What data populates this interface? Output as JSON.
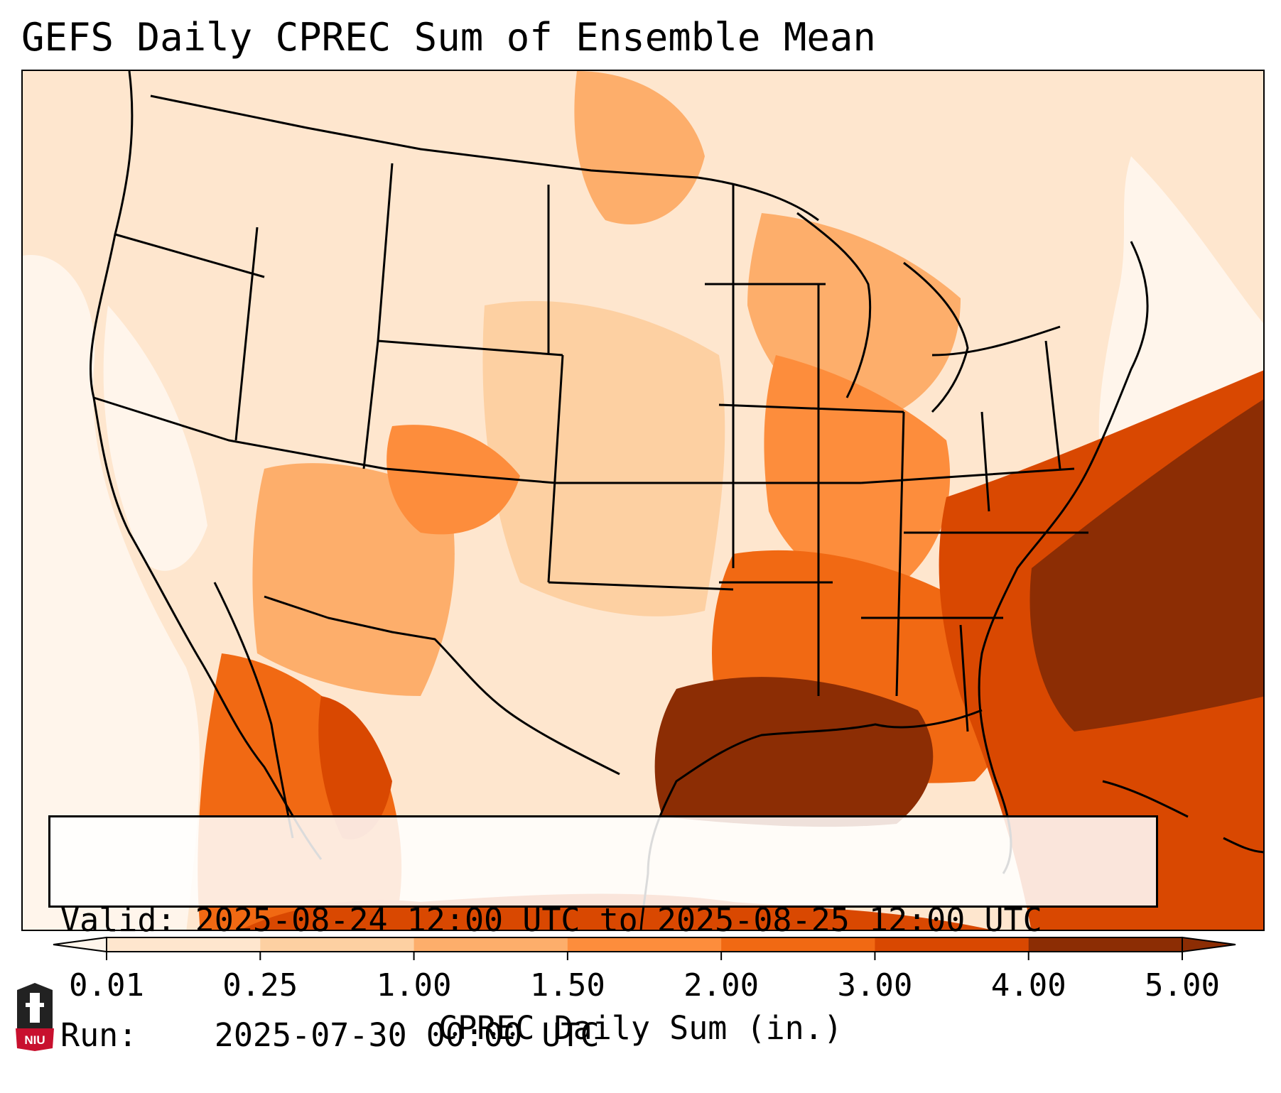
{
  "title": "GEFS Daily CPREC Sum of Ensemble Mean",
  "info": {
    "valid_label": "Valid:",
    "valid_value": "2025-08-24 12:00 UTC to 2025-08-25 12:00 UTC",
    "run_label": "Run:",
    "run_value": "2025-07-30 00:00 UTC"
  },
  "colorbar": {
    "label": "CPREC Daily Sum (in.)",
    "ticks": [
      "0.01",
      "0.25",
      "1.00",
      "1.50",
      "2.00",
      "3.00",
      "4.00",
      "5.00"
    ],
    "colors": [
      "#fff5eb",
      "#fee6ce",
      "#fdd0a2",
      "#fdae6b",
      "#fd8d3c",
      "#f16913",
      "#d94801",
      "#8c2d04"
    ],
    "extend": "both"
  },
  "map": {
    "projection": "Lambert conformal over CONUS",
    "field": "CPREC",
    "colors": {
      "very_light": "#fff5eb",
      "light": "#fee6ce",
      "light_mid": "#fdd0a2",
      "mid": "#fdae6b",
      "mid_dark": "#fd8d3c",
      "dark": "#f16913",
      "darker": "#d94801",
      "darkest": "#8c2d04",
      "border": "#000000"
    }
  },
  "logo": {
    "text": "NIU",
    "colors": {
      "shield": "#222222",
      "banner": "#c8102e"
    }
  }
}
